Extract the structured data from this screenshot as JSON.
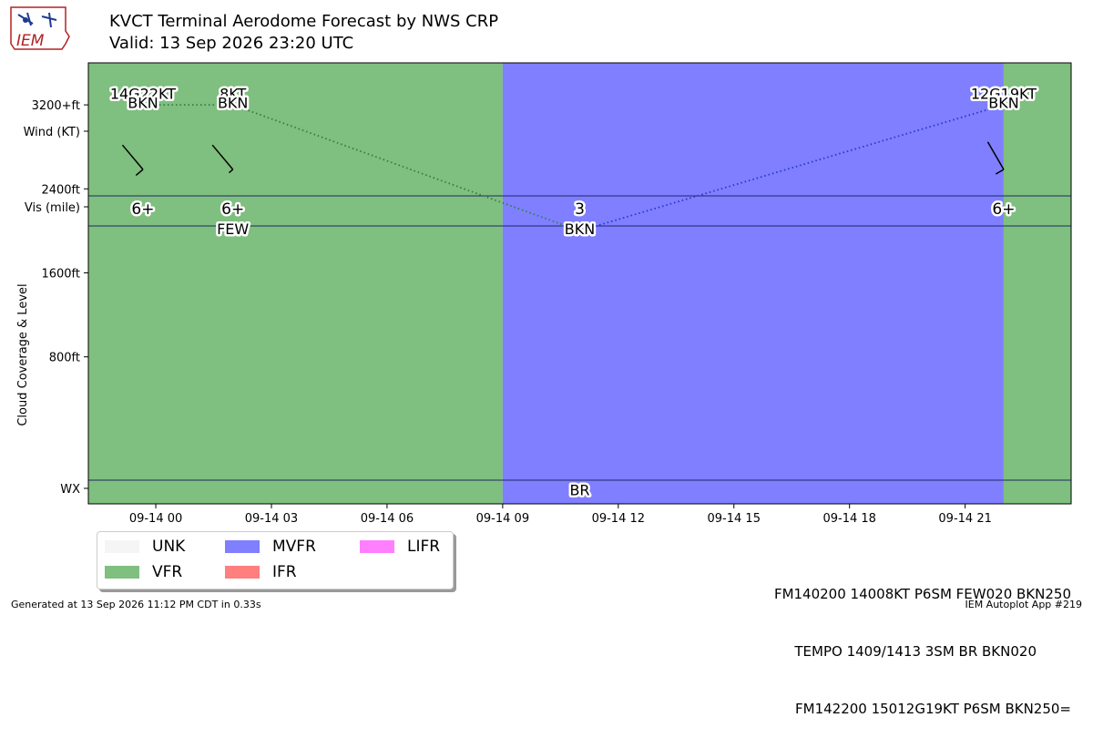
{
  "header": {
    "title": "KVCT Terminal Aerodome Forecast by NWS CRP",
    "valid": "Valid: 13 Sep 2026 23:20 UTC"
  },
  "logo": {
    "text": "IEM"
  },
  "colors": {
    "UNK": "#f5f5f5",
    "VFR": "#7fbf7f",
    "MVFR": "#7f7fff",
    "IFR": "#ff7f7f",
    "LIFR": "#ff7fff"
  },
  "chart_data": {
    "type": "timeline",
    "x_axis": {
      "ticks": [
        "09-14 00",
        "09-14 03",
        "09-14 06",
        "09-14 09",
        "09-14 12",
        "09-14 15",
        "09-14 18",
        "09-14 21"
      ],
      "tick_hours": [
        0,
        3,
        6,
        9,
        12,
        15,
        18,
        21
      ],
      "range_hours": [
        -1.75,
        23.75
      ]
    },
    "y_axis": {
      "ylabel": "Cloud Coverage & Level",
      "row_labels": {
        "wind": "Wind (KT)",
        "vis": "Vis (mile)",
        "wx": "WX"
      },
      "ticks": [
        "3200+ft",
        "2400ft",
        "1600ft",
        "800ft"
      ],
      "tick_values": [
        3200,
        2400,
        1600,
        800
      ],
      "range_ft": [
        -600,
        3600
      ]
    },
    "periods": [
      {
        "start": -1.75,
        "end": 9.0,
        "category": "VFR"
      },
      {
        "start": 9.0,
        "end": 22.0,
        "category": "MVFR"
      },
      {
        "start": 22.0,
        "end": 23.75,
        "category": "VFR"
      }
    ],
    "forecasts": [
      {
        "time": -0.333,
        "wind_label": "14G22KT",
        "dir": 140,
        "speed": 14,
        "gust": 22,
        "vis": "6+",
        "clouds": [
          {
            "cover": "BKN",
            "level": 3200
          }
        ]
      },
      {
        "time": 2.0,
        "wind_label": "8KT",
        "dir": 140,
        "speed": 8,
        "vis": "6+",
        "clouds": [
          {
            "cover": "FEW",
            "level": 2000
          },
          {
            "cover": "BKN",
            "level": 3200
          }
        ]
      },
      {
        "time": 11.0,
        "wind_label": "",
        "vis": "3",
        "wx": "BR",
        "clouds": [
          {
            "cover": "BKN",
            "level": 2000
          }
        ]
      },
      {
        "time": 22.0,
        "wind_label": "12G19KT",
        "dir": 150,
        "speed": 12,
        "gust": 19,
        "vis": "6+",
        "clouds": [
          {
            "cover": "BKN",
            "level": 3200
          }
        ]
      }
    ]
  },
  "legend": {
    "items": [
      {
        "label": "UNK",
        "key": "UNK"
      },
      {
        "label": "VFR",
        "key": "VFR"
      },
      {
        "label": "MVFR",
        "key": "MVFR"
      },
      {
        "label": "IFR",
        "key": "IFR"
      },
      {
        "label": "LIFR",
        "key": "LIFR"
      }
    ]
  },
  "raw_taf": [
    "FM140200 14008KT P6SM FEW020 BKN250",
    "TEMPO 1409/1413 3SM BR BKN020",
    "FM142200 15012G19KT P6SM BKN250="
  ],
  "footer": {
    "generated": "Generated at 13 Sep 2026 11:12 PM CDT in 0.33s",
    "app": "IEM Autoplot App #219"
  }
}
